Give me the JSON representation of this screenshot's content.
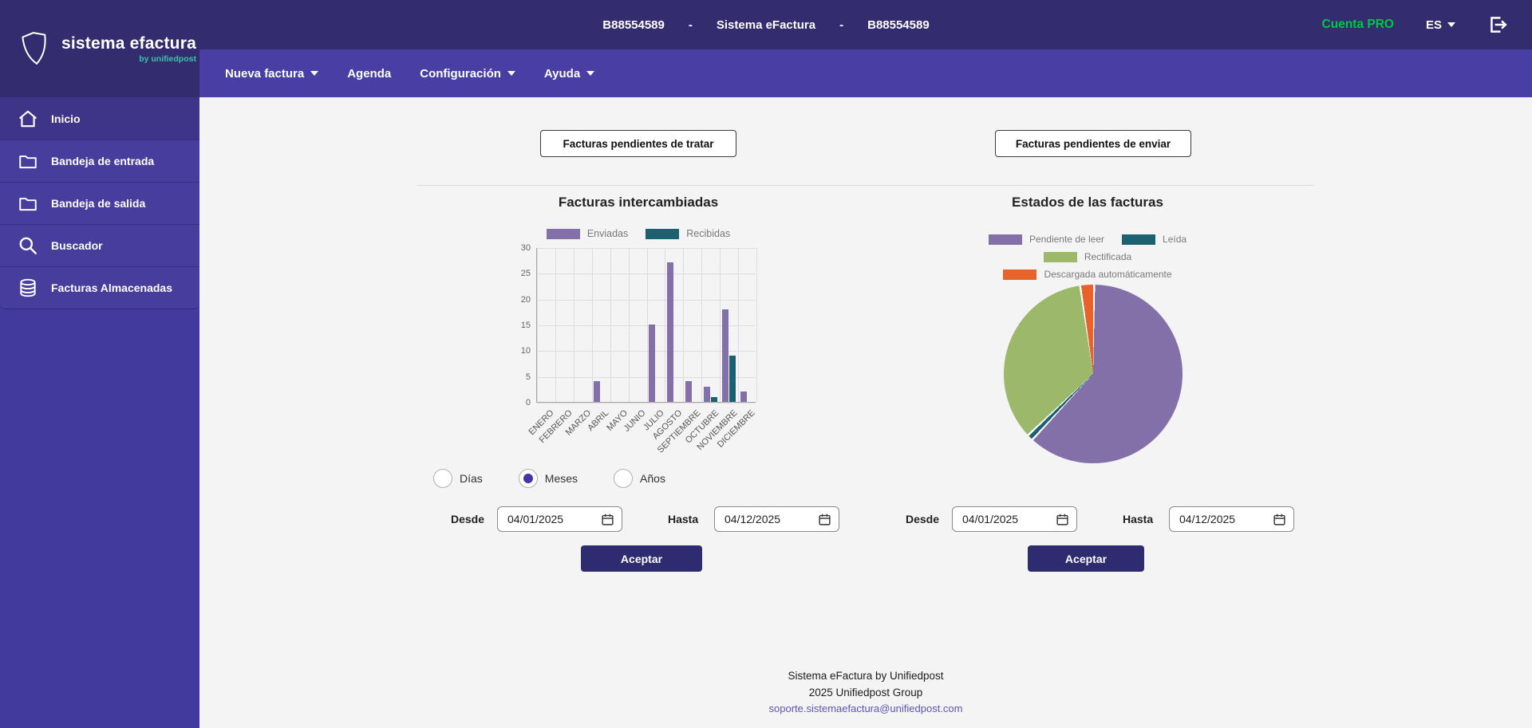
{
  "header": {
    "account_id_left": "B88554589",
    "separator": "-",
    "app_title": "Sistema eFactura",
    "account_id_right": "B88554589",
    "account_plan": "Cuenta PRO",
    "language": "ES",
    "accent_green": "#00c845"
  },
  "logo": {
    "title": "sistema efactura",
    "subtitle": "by unifiedpost"
  },
  "nav": {
    "items": [
      {
        "label": "Nueva factura",
        "dropdown": true
      },
      {
        "label": "Agenda",
        "dropdown": false
      },
      {
        "label": "Configuración",
        "dropdown": true
      },
      {
        "label": "Ayuda",
        "dropdown": true
      }
    ]
  },
  "sidebar": {
    "items": [
      {
        "label": "Inicio",
        "icon": "home-icon",
        "active": true
      },
      {
        "label": "Bandeja de entrada",
        "icon": "folder-icon",
        "active": false
      },
      {
        "label": "Bandeja de salida",
        "icon": "folder-icon",
        "active": false
      },
      {
        "label": "Buscador",
        "icon": "search-icon",
        "active": false
      },
      {
        "label": "Facturas Almacenadas",
        "icon": "database-icon",
        "active": false
      }
    ]
  },
  "main": {
    "pending_buttons": {
      "tratar": "Facturas pendientes de tratar",
      "enviar": "Facturas pendientes de enviar"
    },
    "period_options": [
      {
        "label": "Días",
        "selected": false
      },
      {
        "label": "Meses",
        "selected": true
      },
      {
        "label": "Años",
        "selected": false
      }
    ],
    "filters": {
      "left": {
        "desde_label": "Desde",
        "desde_value": "04/01/2025",
        "hasta_label": "Hasta",
        "hasta_value": "04/12/2025",
        "accept_label": "Aceptar"
      },
      "right": {
        "desde_label": "Desde",
        "desde_value": "04/01/2025",
        "hasta_label": "Hasta",
        "hasta_value": "04/12/2025",
        "accept_label": "Aceptar"
      }
    }
  },
  "chart_data": [
    {
      "type": "bar",
      "title": "Facturas intercambiadas",
      "categories": [
        "ENERO",
        "FEBRERO",
        "MARZO",
        "ABRIL",
        "MAYO",
        "JUNIO",
        "JULIO",
        "AGOSTO",
        "SEPTIEMBRE",
        "OCTUBRE",
        "NOVIEMBRE",
        "DICIEMBRE"
      ],
      "series": [
        {
          "name": "Enviadas",
          "color": "#8470a8",
          "values": [
            0,
            0,
            0,
            4,
            0,
            0,
            15,
            27,
            4,
            3,
            18,
            2
          ]
        },
        {
          "name": "Recibidas",
          "color": "#1d6072",
          "values": [
            0,
            0,
            0,
            0,
            0,
            0,
            0,
            0,
            0,
            1,
            9,
            0
          ]
        }
      ],
      "ylim": [
        0,
        30
      ],
      "ytick_step": 5,
      "grid": true,
      "legend_position": "top"
    },
    {
      "type": "pie",
      "title": "Estados de las facturas",
      "slices": [
        {
          "label": "Pendiente de leer",
          "color": "#8470a8",
          "percent": 61.7
        },
        {
          "label": "Leída",
          "color": "#1d6072",
          "percent": 1.1
        },
        {
          "label": "Rectificada",
          "color": "#9cb86b",
          "percent": 34.7
        },
        {
          "label": "Descargada automáticamente",
          "color": "#e8632a",
          "percent": 2.5
        }
      ],
      "legend_position": "top"
    }
  ],
  "footer": {
    "line1": "Sistema eFactura by Unifiedpost",
    "line2": "2025 Unifiedpost Group",
    "email": "soporte.sistemaefactura@unifiedpost.com"
  }
}
